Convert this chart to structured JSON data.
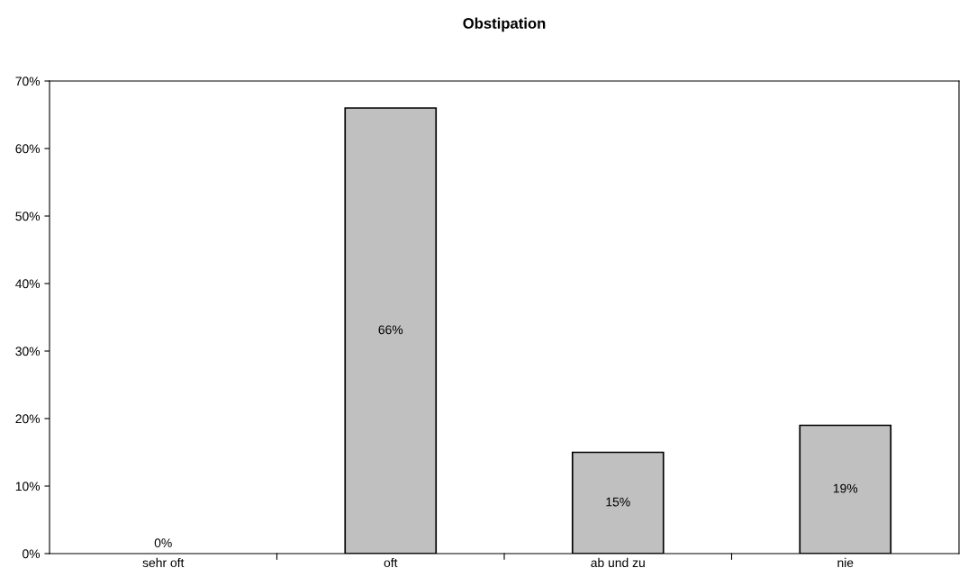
{
  "chart_data": {
    "type": "bar",
    "title": "Obstipation",
    "categories": [
      "sehr oft",
      "oft",
      "ab und zu",
      "nie"
    ],
    "values": [
      0,
      66,
      15,
      19
    ],
    "value_labels": [
      "0%",
      "66%",
      "15%",
      "19%"
    ],
    "color": "#c0c0c0",
    "ylim": [
      0,
      70
    ],
    "yticks": [
      {
        "value": 0,
        "label": "0%"
      },
      {
        "value": 10,
        "label": "10%"
      },
      {
        "value": 20,
        "label": "20%"
      },
      {
        "value": 30,
        "label": "30%"
      },
      {
        "value": 40,
        "label": "40%"
      },
      {
        "value": 50,
        "label": "50%"
      },
      {
        "value": 60,
        "label": "60%"
      },
      {
        "value": 70,
        "label": "70%"
      }
    ],
    "grid": false,
    "legend": false
  }
}
